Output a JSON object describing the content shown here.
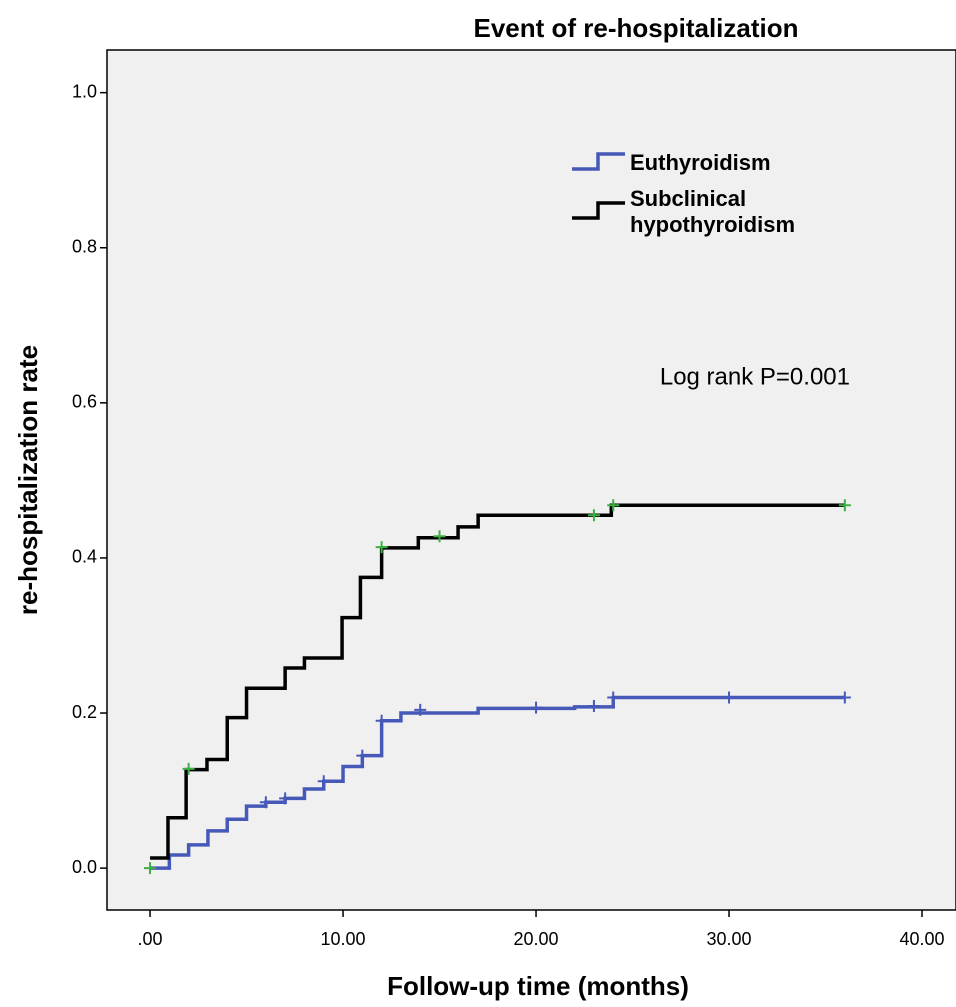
{
  "chart_data": {
    "type": "step",
    "title": "Event of re-hospitalization",
    "x_label": "Follow-up time (months)",
    "y_label": "re-hospitalization rate",
    "annotation": "Log rank P=0.001",
    "xlim": [
      -2.23,
      41.76
    ],
    "ylim": [
      -0.054,
      1.055
    ],
    "xticks": [
      {
        "value": 0,
        "label": ".00"
      },
      {
        "value": 10,
        "label": "10.00"
      },
      {
        "value": 20,
        "label": "20.00"
      },
      {
        "value": 30,
        "label": "30.00"
      },
      {
        "value": 40,
        "label": "40.00"
      }
    ],
    "yticks": [
      {
        "value": 0,
        "label": "0.0"
      },
      0.2,
      0.4,
      0.6,
      0.8,
      {
        "value": 1,
        "label": "1.0"
      }
    ],
    "series": [
      {
        "name": "Euthyroidism",
        "color": "#4659b8",
        "censor_color": "#4659b8",
        "x": [
          0,
          1,
          2,
          3,
          4,
          5,
          6,
          7,
          8,
          9,
          10,
          11,
          12,
          13,
          17,
          22,
          24,
          36
        ],
        "values": [
          0,
          0.017,
          0.03,
          0.048,
          0.063,
          0.08,
          0.085,
          0.09,
          0.102,
          0.112,
          0.131,
          0.145,
          0.19,
          0.2,
          0.206,
          0.208,
          0.22,
          0.22
        ],
        "censored": {
          "x": [
            6,
            7,
            9,
            11,
            12,
            14,
            20,
            23,
            24,
            30,
            36
          ],
          "values": [
            0.085,
            0.09,
            0.112,
            0.145,
            0.19,
            0.204,
            0.207,
            0.209,
            0.22,
            0.22,
            0.22
          ]
        }
      },
      {
        "name": "Subclinical hypothyroidism",
        "color": "#000000",
        "censor_color": "#3cb043",
        "x": [
          0,
          0.93,
          1.87,
          2.95,
          4,
          5,
          7,
          8,
          9.95,
          10.9,
          12,
          13.9,
          15.96,
          17,
          23.9,
          36
        ],
        "values": [
          0.013,
          0.065,
          0.127,
          0.14,
          0.194,
          0.232,
          0.258,
          0.271,
          0.323,
          0.375,
          0.413,
          0.426,
          0.44,
          0.455,
          0.468,
          0.468
        ],
        "censored": {
          "x": [
            0,
            2,
            12,
            15,
            23,
            24,
            36
          ],
          "values": [
            0,
            0.128,
            0.414,
            0.428,
            0.455,
            0.468,
            0.468
          ]
        }
      }
    ]
  }
}
